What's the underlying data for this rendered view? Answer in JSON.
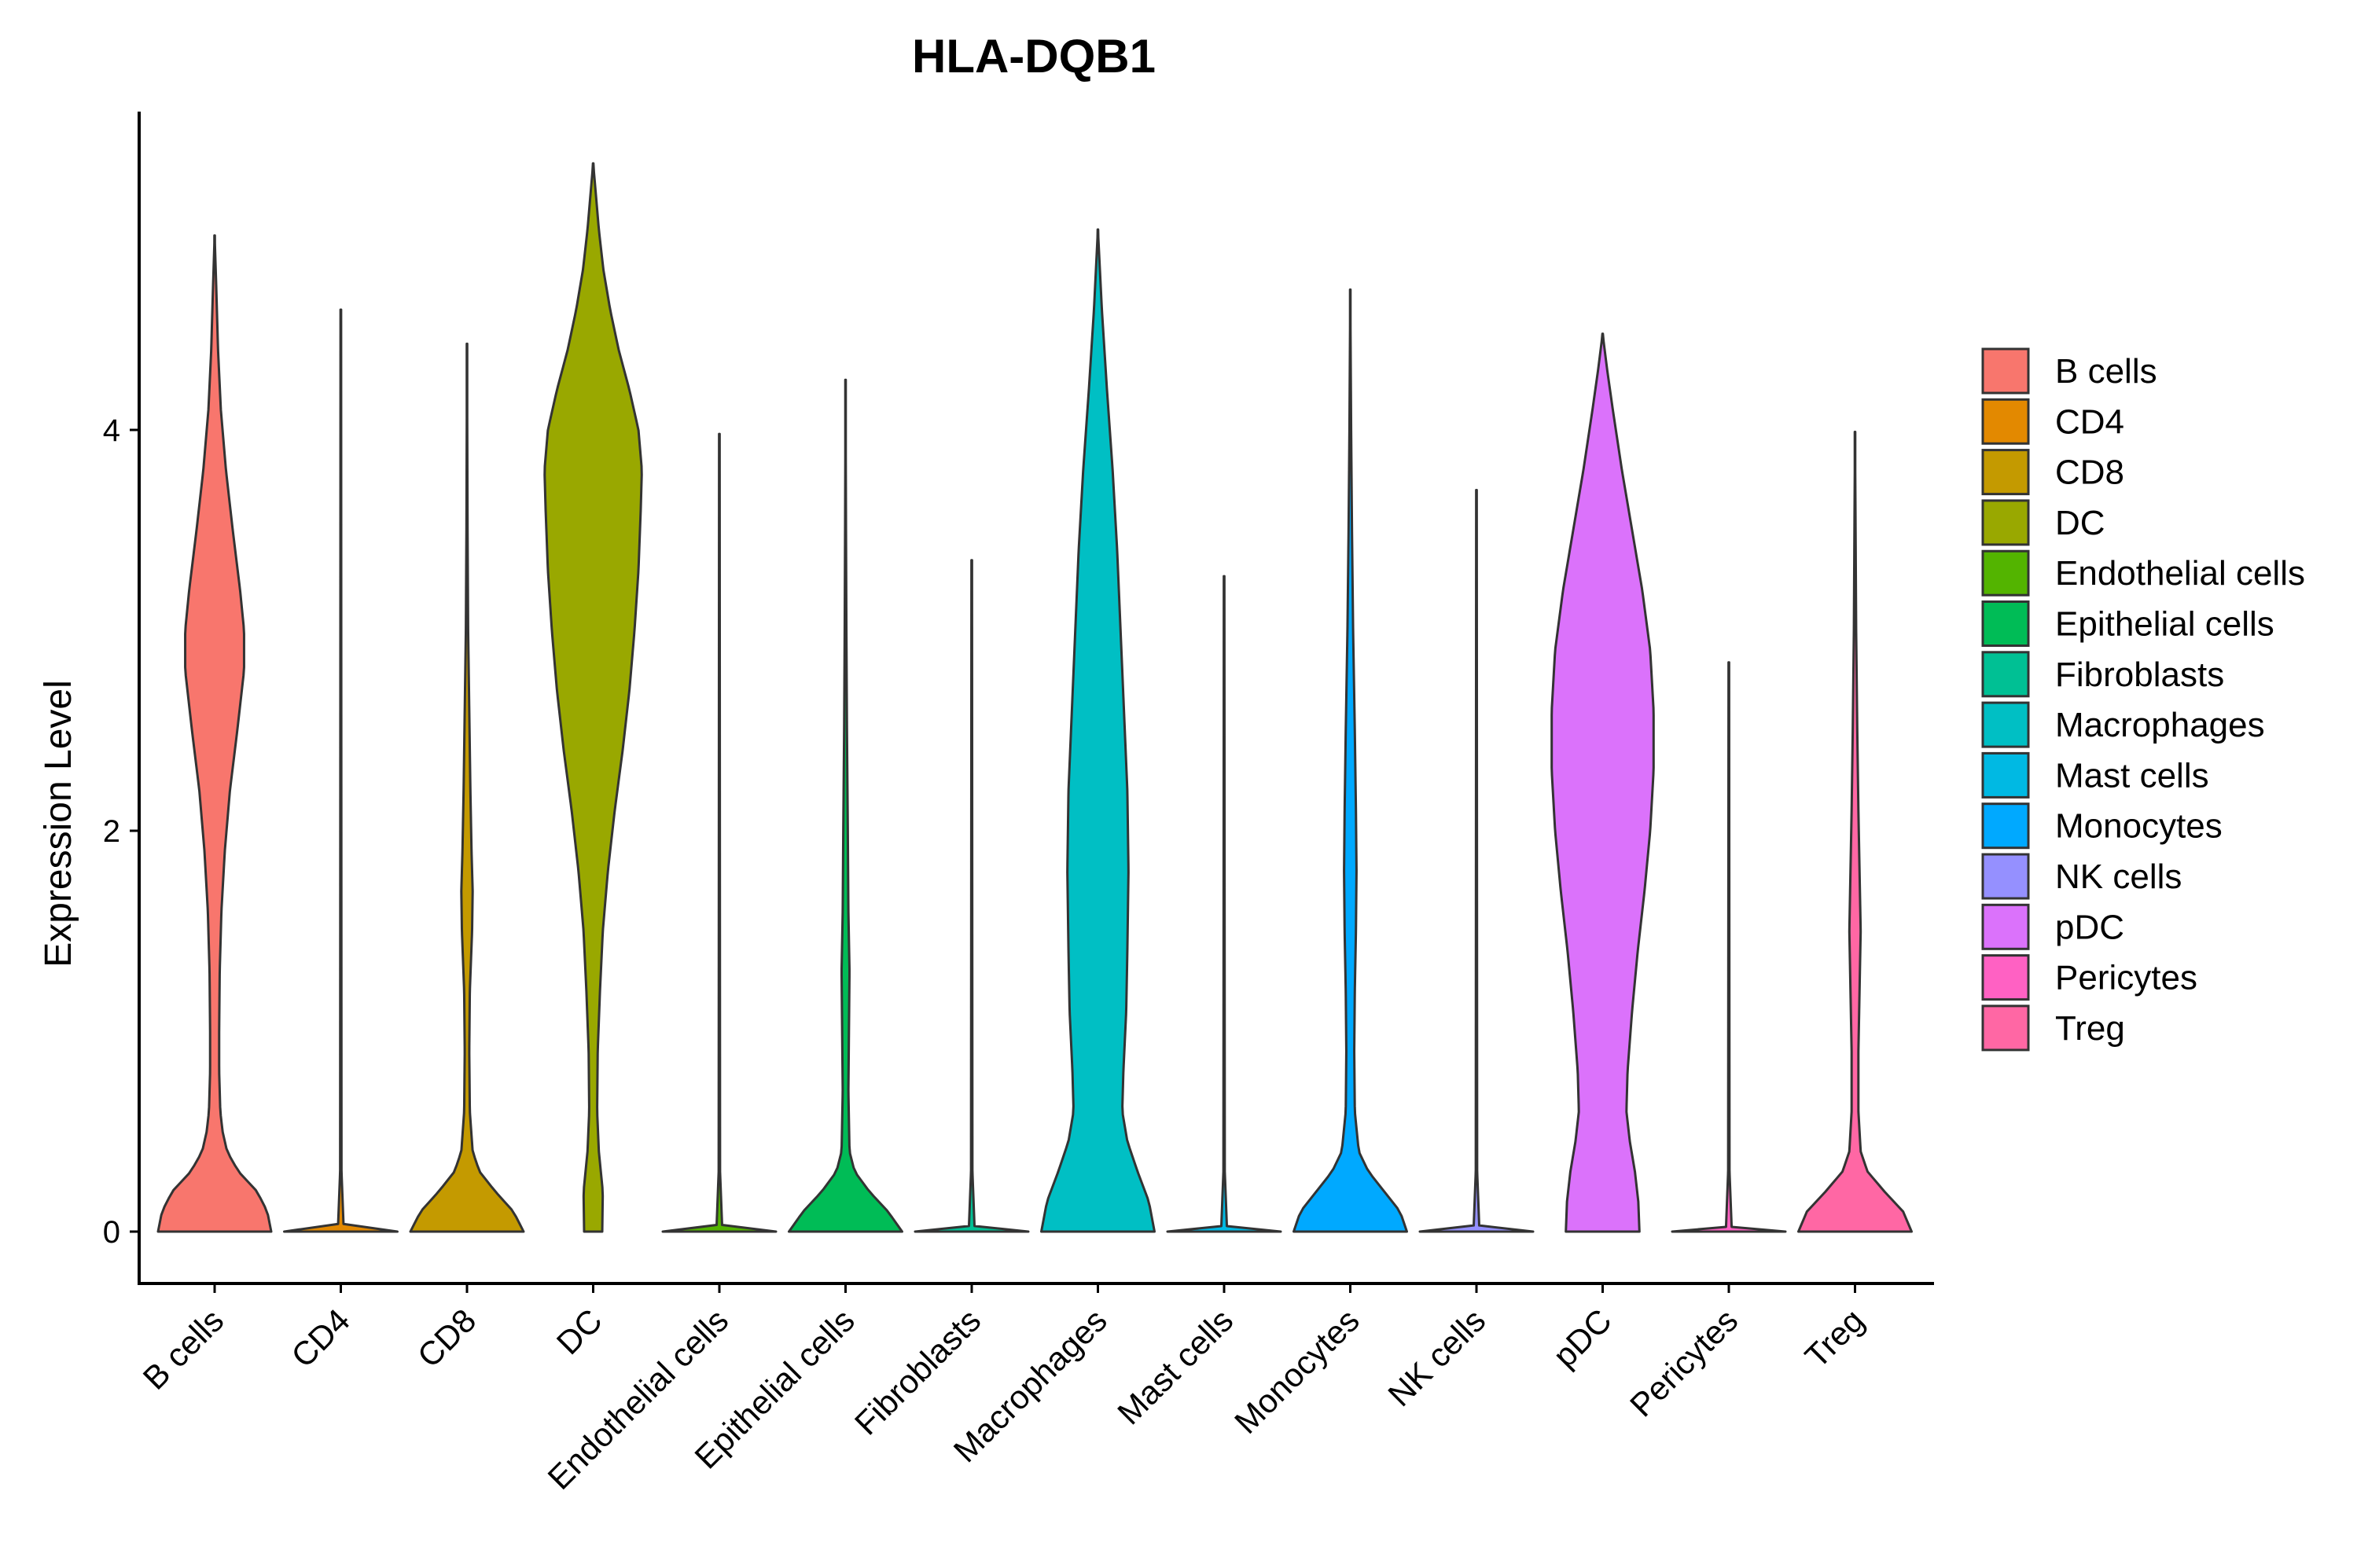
{
  "chart_data": {
    "type": "violin",
    "title": "HLA-DQB1",
    "xlabel": "",
    "ylabel": "Expression Level",
    "ylim": [
      -0.26,
      5.6
    ],
    "yticks": [
      0,
      2,
      4
    ],
    "ytick_labels": [
      "0",
      "2",
      "4"
    ],
    "grid": false,
    "legend_position": "right",
    "categories": [
      "B cells",
      "CD4",
      "CD8",
      "DC",
      "Endothelial cells",
      "Epithelial cells",
      "Fibroblasts",
      "Macrophages",
      "Mast cells",
      "Monocytes",
      "NK cells",
      "pDC",
      "Pericytes",
      "Treg"
    ],
    "series": [
      {
        "name": "B cells",
        "color": "#F8766D",
        "max": 4.97,
        "profile": [
          [
            0,
            1.0
          ],
          [
            0.1,
            0.93
          ],
          [
            0.2,
            0.75
          ],
          [
            0.3,
            0.42
          ],
          [
            0.4,
            0.22
          ],
          [
            0.5,
            0.14
          ],
          [
            0.6,
            0.1
          ],
          [
            0.8,
            0.08
          ],
          [
            1.0,
            0.08
          ],
          [
            1.3,
            0.09
          ],
          [
            1.6,
            0.12
          ],
          [
            1.9,
            0.18
          ],
          [
            2.2,
            0.27
          ],
          [
            2.5,
            0.4
          ],
          [
            2.8,
            0.52
          ],
          [
            3.0,
            0.52
          ],
          [
            3.2,
            0.45
          ],
          [
            3.5,
            0.32
          ],
          [
            3.8,
            0.2
          ],
          [
            4.1,
            0.11
          ],
          [
            4.4,
            0.06
          ],
          [
            4.7,
            0.03
          ],
          [
            4.97,
            0.0
          ]
        ]
      },
      {
        "name": "CD4",
        "color": "#E38900",
        "max": 4.6,
        "profile": [
          [
            0,
            1.0
          ],
          [
            0.02,
            0.05
          ],
          [
            0.3,
            0.012
          ],
          [
            4.6,
            0.005
          ]
        ]
      },
      {
        "name": "CD8",
        "color": "#C49A00",
        "max": 4.43,
        "profile": [
          [
            0,
            1.0
          ],
          [
            0.1,
            0.82
          ],
          [
            0.2,
            0.5
          ],
          [
            0.3,
            0.22
          ],
          [
            0.4,
            0.1
          ],
          [
            0.6,
            0.05
          ],
          [
            0.9,
            0.04
          ],
          [
            1.2,
            0.05
          ],
          [
            1.5,
            0.09
          ],
          [
            1.7,
            0.1
          ],
          [
            1.9,
            0.08
          ],
          [
            2.2,
            0.06
          ],
          [
            2.6,
            0.04
          ],
          [
            3.0,
            0.02
          ],
          [
            3.5,
            0.01
          ],
          [
            4.43,
            0.0
          ]
        ]
      },
      {
        "name": "DC",
        "color": "#99A800",
        "max": 5.33,
        "profile": [
          [
            0,
            0.16
          ],
          [
            0.2,
            0.17
          ],
          [
            0.4,
            0.1
          ],
          [
            0.6,
            0.07
          ],
          [
            0.9,
            0.08
          ],
          [
            1.2,
            0.12
          ],
          [
            1.5,
            0.17
          ],
          [
            1.8,
            0.26
          ],
          [
            2.1,
            0.38
          ],
          [
            2.4,
            0.52
          ],
          [
            2.7,
            0.64
          ],
          [
            3.0,
            0.73
          ],
          [
            3.3,
            0.8
          ],
          [
            3.6,
            0.84
          ],
          [
            3.8,
            0.86
          ],
          [
            4.0,
            0.8
          ],
          [
            4.2,
            0.64
          ],
          [
            4.4,
            0.45
          ],
          [
            4.6,
            0.3
          ],
          [
            4.8,
            0.18
          ],
          [
            5.0,
            0.1
          ],
          [
            5.2,
            0.04
          ],
          [
            5.33,
            0.0
          ]
        ]
      },
      {
        "name": "Endothelial cells",
        "color": "#53B400",
        "max": 3.98,
        "profile": [
          [
            0,
            1.0
          ],
          [
            0.02,
            0.05
          ],
          [
            0.3,
            0.012
          ],
          [
            3.98,
            0.005
          ]
        ]
      },
      {
        "name": "Epithelial cells",
        "color": "#00BC56",
        "max": 4.25,
        "profile": [
          [
            0,
            1.0
          ],
          [
            0.1,
            0.75
          ],
          [
            0.2,
            0.42
          ],
          [
            0.3,
            0.16
          ],
          [
            0.4,
            0.07
          ],
          [
            0.7,
            0.05
          ],
          [
            1.0,
            0.06
          ],
          [
            1.3,
            0.07
          ],
          [
            1.6,
            0.05
          ],
          [
            2.0,
            0.04
          ],
          [
            2.5,
            0.025
          ],
          [
            3.0,
            0.015
          ],
          [
            3.5,
            0.008
          ],
          [
            4.25,
            0.0
          ]
        ]
      },
      {
        "name": "Fibroblasts",
        "color": "#00C094",
        "max": 3.35,
        "profile": [
          [
            0,
            1.0
          ],
          [
            0.02,
            0.05
          ],
          [
            0.3,
            0.012
          ],
          [
            3.35,
            0.005
          ]
        ]
      },
      {
        "name": "Macrophages",
        "color": "#00BFC4",
        "max": 5.0,
        "profile": [
          [
            0,
            1.0
          ],
          [
            0.15,
            0.9
          ],
          [
            0.3,
            0.7
          ],
          [
            0.45,
            0.52
          ],
          [
            0.6,
            0.43
          ],
          [
            0.8,
            0.45
          ],
          [
            1.1,
            0.5
          ],
          [
            1.4,
            0.52
          ],
          [
            1.8,
            0.54
          ],
          [
            2.2,
            0.52
          ],
          [
            2.6,
            0.46
          ],
          [
            3.0,
            0.4
          ],
          [
            3.4,
            0.34
          ],
          [
            3.8,
            0.26
          ],
          [
            4.2,
            0.16
          ],
          [
            4.6,
            0.07
          ],
          [
            5.0,
            0.0
          ]
        ]
      },
      {
        "name": "Mast cells",
        "color": "#00B9E3",
        "max": 3.27,
        "profile": [
          [
            0,
            1.0
          ],
          [
            0.02,
            0.05
          ],
          [
            0.3,
            0.012
          ],
          [
            3.27,
            0.005
          ]
        ]
      },
      {
        "name": "Monocytes",
        "color": "#00A9FF",
        "max": 4.7,
        "profile": [
          [
            0,
            1.0
          ],
          [
            0.1,
            0.88
          ],
          [
            0.2,
            0.6
          ],
          [
            0.3,
            0.32
          ],
          [
            0.4,
            0.15
          ],
          [
            0.6,
            0.08
          ],
          [
            0.9,
            0.07
          ],
          [
            1.2,
            0.08
          ],
          [
            1.5,
            0.1
          ],
          [
            1.8,
            0.11
          ],
          [
            2.1,
            0.1
          ],
          [
            2.5,
            0.08
          ],
          [
            3.0,
            0.05
          ],
          [
            3.5,
            0.03
          ],
          [
            4.0,
            0.015
          ],
          [
            4.7,
            0.0
          ]
        ]
      },
      {
        "name": "NK cells",
        "color": "#9590FF",
        "max": 3.7,
        "profile": [
          [
            0,
            1.0
          ],
          [
            0.02,
            0.05
          ],
          [
            0.3,
            0.012
          ],
          [
            3.7,
            0.005
          ]
        ]
      },
      {
        "name": "pDC",
        "color": "#DB72FB",
        "max": 4.48,
        "profile": [
          [
            0,
            0.65
          ],
          [
            0.15,
            0.63
          ],
          [
            0.3,
            0.57
          ],
          [
            0.45,
            0.48
          ],
          [
            0.6,
            0.42
          ],
          [
            0.8,
            0.44
          ],
          [
            1.1,
            0.52
          ],
          [
            1.4,
            0.62
          ],
          [
            1.7,
            0.74
          ],
          [
            2.0,
            0.84
          ],
          [
            2.3,
            0.9
          ],
          [
            2.6,
            0.9
          ],
          [
            2.9,
            0.84
          ],
          [
            3.2,
            0.7
          ],
          [
            3.5,
            0.52
          ],
          [
            3.8,
            0.34
          ],
          [
            4.1,
            0.18
          ],
          [
            4.3,
            0.08
          ],
          [
            4.48,
            0.0
          ]
        ]
      },
      {
        "name": "Pericytes",
        "color": "#FF61C3",
        "max": 2.84,
        "profile": [
          [
            0,
            1.0
          ],
          [
            0.02,
            0.05
          ],
          [
            0.3,
            0.012
          ],
          [
            2.84,
            0.005
          ]
        ]
      },
      {
        "name": "Treg",
        "color": "#FF67A4",
        "max": 3.99,
        "profile": [
          [
            0,
            1.0
          ],
          [
            0.1,
            0.85
          ],
          [
            0.2,
            0.52
          ],
          [
            0.3,
            0.22
          ],
          [
            0.4,
            0.1
          ],
          [
            0.6,
            0.06
          ],
          [
            0.9,
            0.06
          ],
          [
            1.2,
            0.08
          ],
          [
            1.5,
            0.1
          ],
          [
            1.8,
            0.08
          ],
          [
            2.1,
            0.06
          ],
          [
            2.5,
            0.04
          ],
          [
            3.0,
            0.02
          ],
          [
            3.5,
            0.01
          ],
          [
            3.99,
            0.0
          ]
        ]
      }
    ]
  }
}
